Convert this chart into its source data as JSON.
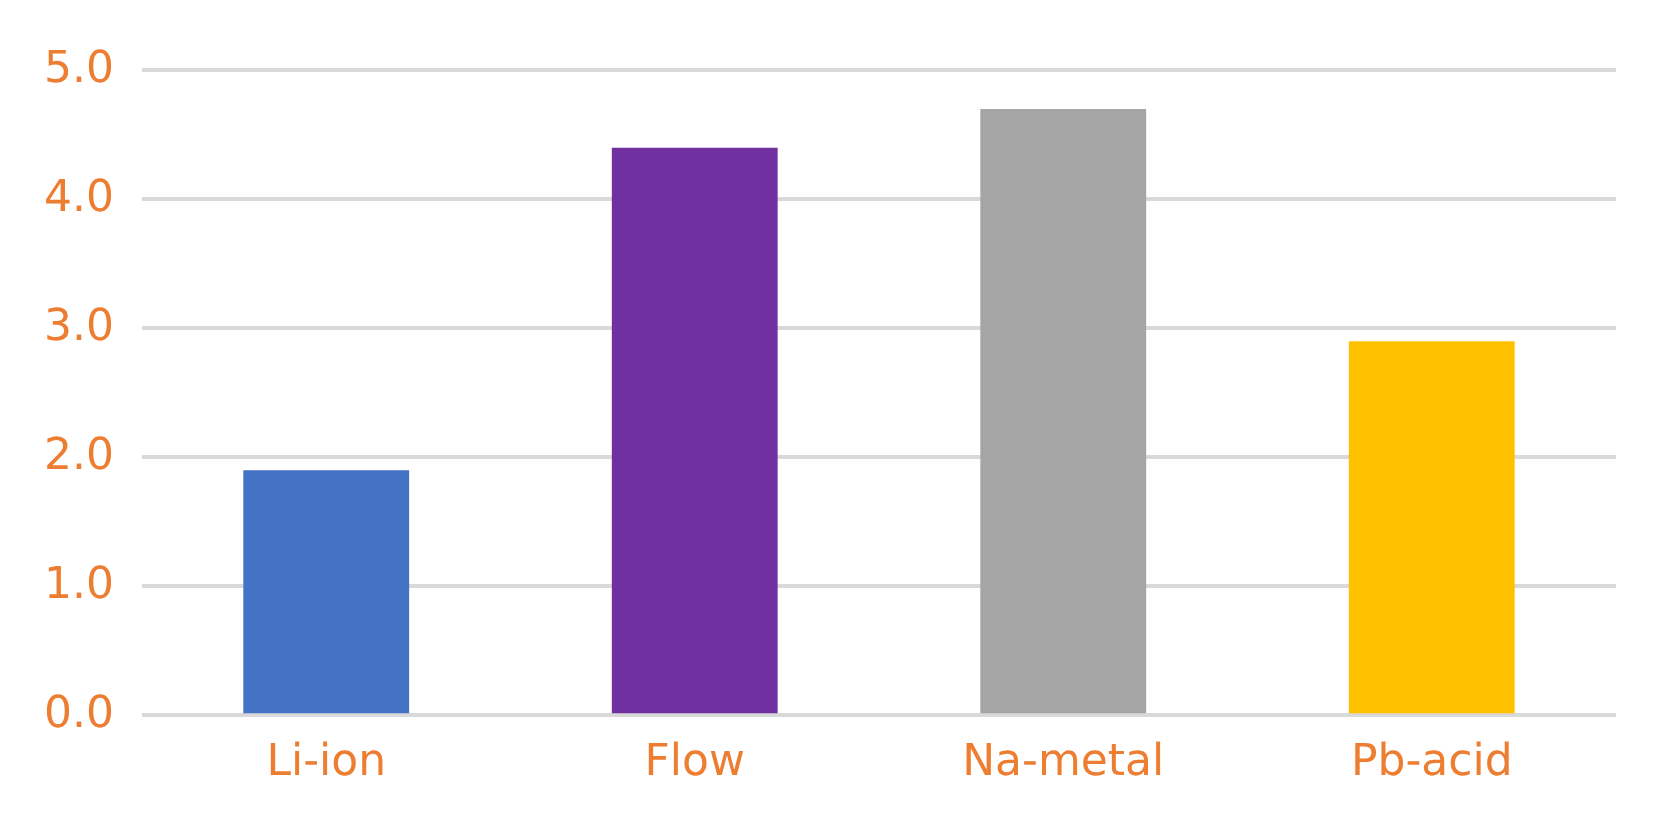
{
  "chart_data": {
    "type": "bar",
    "categories": [
      "Li-ion",
      "Flow",
      "Na-metal",
      "Pb-acid"
    ],
    "values": [
      1.9,
      4.4,
      4.7,
      2.9
    ],
    "colors": [
      "#4472c4",
      "#7030a0",
      "#a5a5a5",
      "#ffc000"
    ],
    "ylim": [
      0,
      5
    ],
    "yticks": [
      {
        "value": 0,
        "label": "0.0"
      },
      {
        "value": 1,
        "label": "1.0"
      },
      {
        "value": 2,
        "label": "2.0"
      },
      {
        "value": 3,
        "label": "3.0"
      },
      {
        "value": 4,
        "label": "4.0"
      },
      {
        "value": 5,
        "label": "5.0"
      }
    ],
    "grid": "y"
  }
}
